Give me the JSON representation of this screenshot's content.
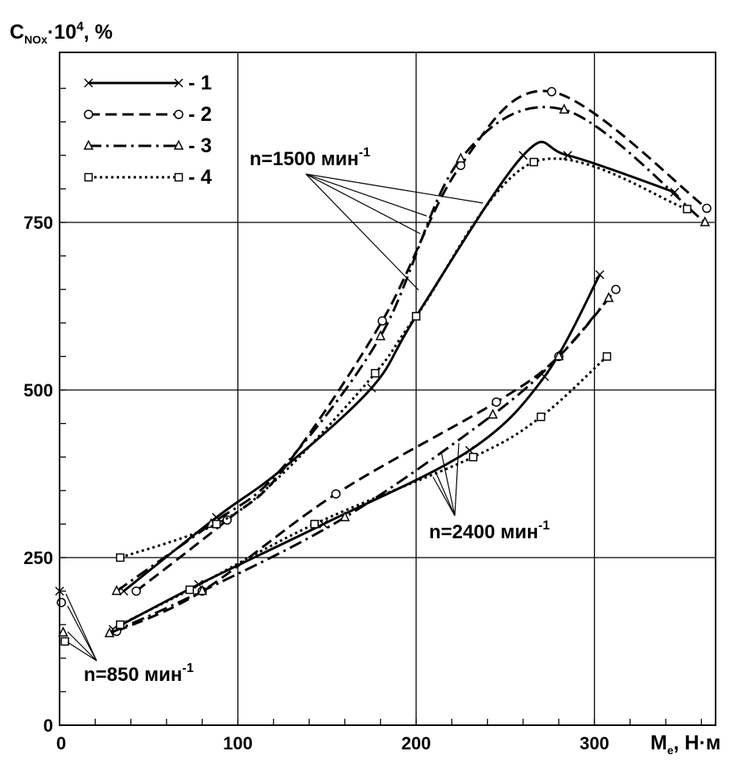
{
  "chart_data": {
    "type": "line",
    "ylabel": {
      "main": "C",
      "sub": "NOx",
      "mid": "·10",
      "sup": "4",
      "tail": ", %"
    },
    "xlabel": {
      "main": "M",
      "sub": "e",
      "tail": ", Н·м"
    },
    "xlim": [
      0,
      370
    ],
    "ylim": [
      0,
      985
    ],
    "x_ticks": [
      0,
      100,
      200,
      300
    ],
    "x_tick_labels": [
      "0",
      "100",
      "200",
      "300"
    ],
    "y_ticks": [
      0,
      250,
      500,
      750
    ],
    "y_tick_labels": [
      "0",
      "250",
      "500",
      "750"
    ],
    "grid": true,
    "legend_position": "top-left",
    "colors": {
      "lines": "#000000",
      "background": "#ffffff"
    },
    "series": [
      {
        "name": "1",
        "marker": "x",
        "dash": "solid",
        "n850": [
          [
            0,
            200
          ]
        ],
        "n1500": [
          [
            36,
            200
          ],
          [
            88,
            310
          ],
          [
            124,
            380
          ],
          [
            175,
            503
          ],
          [
            200,
            610
          ],
          [
            260,
            850
          ],
          [
            285,
            850
          ],
          [
            345,
            795
          ]
        ],
        "n2400": [
          [
            30,
            143
          ],
          [
            78,
            210
          ],
          [
            148,
            300
          ],
          [
            230,
            410
          ],
          [
            272,
            520
          ],
          [
            303,
            672
          ]
        ]
      },
      {
        "name": "2",
        "marker": "o",
        "dash": "dashed",
        "n850": [
          [
            1,
            183
          ]
        ],
        "n1500": [
          [
            43,
            200
          ],
          [
            94,
            306
          ],
          [
            125,
            380
          ],
          [
            181,
            603
          ],
          [
            225,
            835
          ],
          [
            276,
            945
          ],
          [
            363,
            771
          ]
        ],
        "n2400": [
          [
            32,
            140
          ],
          [
            80,
            200
          ],
          [
            155,
            345
          ],
          [
            245,
            482
          ],
          [
            280,
            550
          ],
          [
            312,
            650
          ]
        ]
      },
      {
        "name": "3",
        "marker": "triangle",
        "dash": "dashdot",
        "n850": [
          [
            2,
            138
          ]
        ],
        "n1500": [
          [
            32,
            200
          ],
          [
            85,
            300
          ],
          [
            122,
            375
          ],
          [
            180,
            580
          ],
          [
            225,
            845
          ],
          [
            283,
            918
          ],
          [
            362,
            750
          ]
        ],
        "n2400": [
          [
            28,
            137
          ],
          [
            80,
            200
          ],
          [
            160,
            310
          ],
          [
            243,
            463
          ],
          [
            280,
            550
          ],
          [
            308,
            637
          ]
        ]
      },
      {
        "name": "4",
        "marker": "square",
        "dash": "dotted",
        "n850": [
          [
            3,
            125
          ]
        ],
        "n1500": [
          [
            34,
            250
          ],
          [
            88,
            300
          ],
          [
            125,
            375
          ],
          [
            177,
            525
          ],
          [
            200,
            610
          ],
          [
            266,
            840
          ],
          [
            352,
            770
          ]
        ],
        "n2400": [
          [
            34,
            150
          ],
          [
            73,
            202
          ],
          [
            143,
            300
          ],
          [
            232,
            400
          ],
          [
            270,
            460
          ],
          [
            307,
            550
          ]
        ]
      }
    ],
    "annotations": {
      "n1500": {
        "prefix": "n=1500 мин",
        "sup": "-1"
      },
      "n2400": {
        "prefix": "n=2400 мин",
        "sup": "-1"
      },
      "n850": {
        "prefix": "n=850 мин",
        "sup": "-1"
      }
    }
  }
}
